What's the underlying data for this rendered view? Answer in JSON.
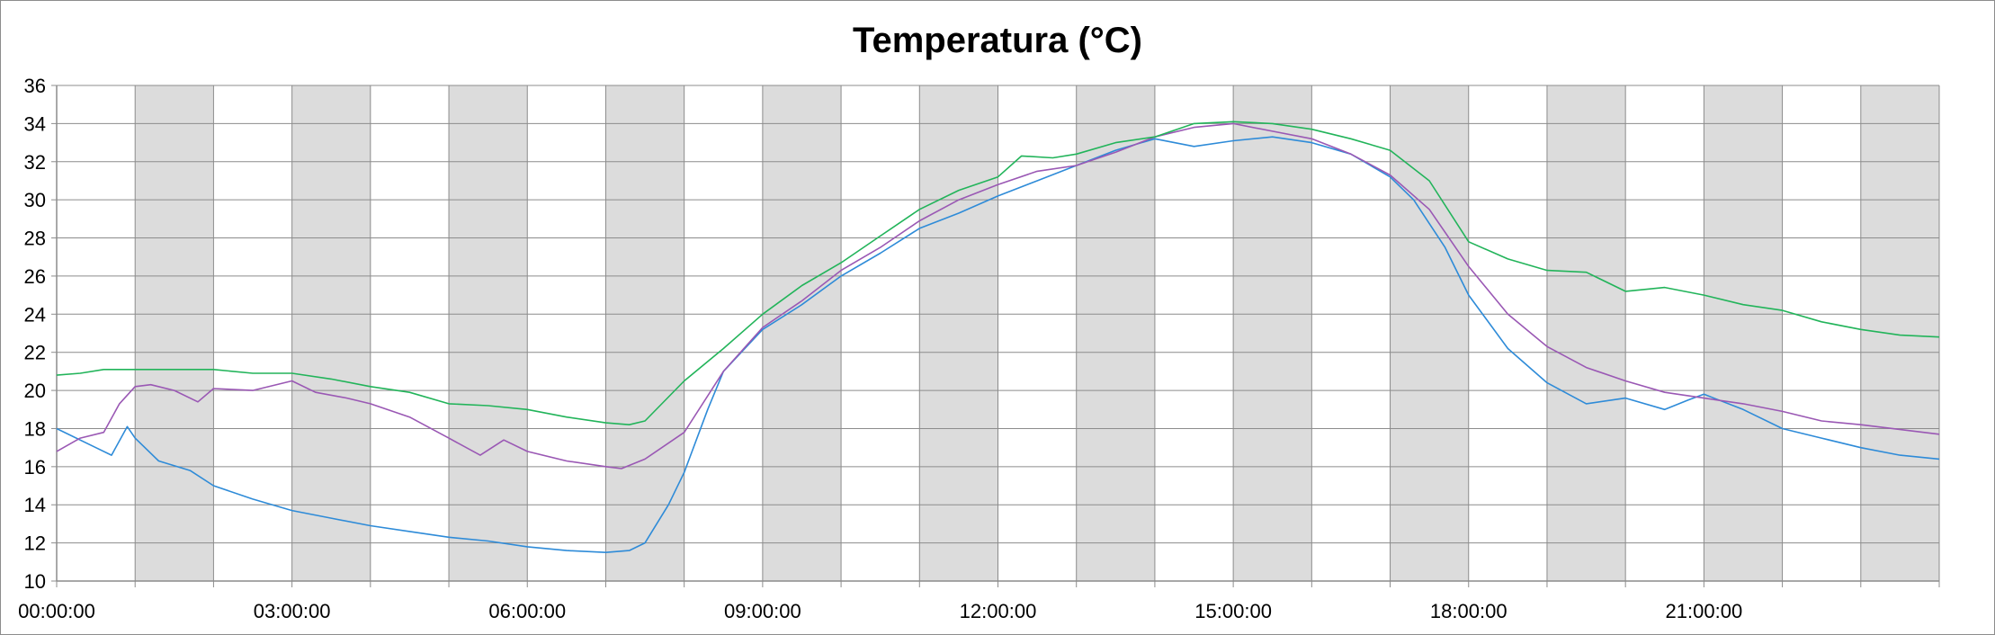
{
  "chart_data": {
    "type": "line",
    "title": "Temperatura (°C)",
    "xlabel": "",
    "ylabel": "",
    "x_unit": "hours",
    "xlim": [
      0,
      24
    ],
    "ylim": [
      10,
      36
    ],
    "x_tick_labels": [
      "00:00:00",
      "03:00:00",
      "06:00:00",
      "09:00:00",
      "12:00:00",
      "15:00:00",
      "18:00:00",
      "21:00:00"
    ],
    "x_tick_positions_hours": [
      0,
      3,
      6,
      9,
      12,
      15,
      18,
      21
    ],
    "y_ticks": [
      10,
      12,
      14,
      16,
      18,
      20,
      22,
      24,
      26,
      28,
      30,
      32,
      34,
      36
    ],
    "grid": true,
    "legend": "none",
    "shaded_bands_hours": [
      [
        1,
        2
      ],
      [
        3,
        4
      ],
      [
        5,
        6
      ],
      [
        7,
        8
      ],
      [
        9,
        10
      ],
      [
        11,
        12
      ],
      [
        13,
        14
      ],
      [
        15,
        16
      ],
      [
        17,
        18
      ],
      [
        19,
        20
      ],
      [
        21,
        22
      ],
      [
        23,
        24
      ]
    ],
    "colors": {
      "band": "#dcdcdc",
      "grid": "#8c8c8c",
      "axis": "#8c8c8c"
    },
    "series": [
      {
        "color": "#2e8bd8",
        "x": [
          0,
          0.5,
          0.7,
          0.9,
          1.0,
          1.3,
          1.7,
          2.0,
          2.5,
          3.0,
          3.5,
          4.0,
          4.5,
          5.0,
          5.5,
          6.0,
          6.5,
          7.0,
          7.3,
          7.5,
          7.8,
          8.0,
          8.3,
          8.5,
          9.0,
          9.5,
          10.0,
          10.5,
          11.0,
          11.5,
          12.0,
          12.5,
          13.0,
          13.5,
          14.0,
          14.5,
          15.0,
          15.5,
          16.0,
          16.5,
          17.0,
          17.3,
          17.7,
          18.0,
          18.5,
          19.0,
          19.5,
          20.0,
          20.5,
          20.8,
          21.0,
          21.5,
          22.0,
          22.5,
          23.0,
          23.5,
          24.0
        ],
        "y": [
          18.0,
          17.0,
          16.6,
          18.1,
          17.5,
          16.3,
          15.8,
          15.0,
          14.3,
          13.7,
          13.3,
          12.9,
          12.6,
          12.3,
          12.1,
          11.8,
          11.6,
          11.5,
          11.6,
          12.0,
          14.0,
          15.7,
          19.0,
          21.0,
          23.2,
          24.5,
          26.0,
          27.2,
          28.5,
          29.3,
          30.2,
          31.0,
          31.8,
          32.6,
          33.2,
          32.8,
          33.1,
          33.3,
          33.0,
          32.4,
          31.2,
          30.0,
          27.5,
          25.0,
          22.2,
          20.4,
          19.3,
          19.6,
          19.0,
          19.5,
          19.8,
          19.0,
          18.0,
          17.5,
          17.0,
          16.6,
          16.4
        ]
      },
      {
        "color": "#9a58b4",
        "x": [
          0,
          0.3,
          0.6,
          0.8,
          1.0,
          1.2,
          1.5,
          1.8,
          2.0,
          2.5,
          3.0,
          3.3,
          3.7,
          4.0,
          4.5,
          5.0,
          5.4,
          5.7,
          6.0,
          6.5,
          7.0,
          7.2,
          7.5,
          8.0,
          8.5,
          9.0,
          9.5,
          10.0,
          10.5,
          11.0,
          11.5,
          12.0,
          12.5,
          13.0,
          13.5,
          14.0,
          14.5,
          15.0,
          15.5,
          16.0,
          16.5,
          17.0,
          17.5,
          18.0,
          18.5,
          19.0,
          19.5,
          20.0,
          20.5,
          21.0,
          21.5,
          22.0,
          22.5,
          23.0,
          24.0
        ],
        "y": [
          16.8,
          17.5,
          17.8,
          19.3,
          20.2,
          20.3,
          20.0,
          19.4,
          20.1,
          20.0,
          20.5,
          19.9,
          19.6,
          19.3,
          18.6,
          17.5,
          16.6,
          17.4,
          16.8,
          16.3,
          16.0,
          15.9,
          16.4,
          17.8,
          21.0,
          23.3,
          24.7,
          26.3,
          27.5,
          28.9,
          30.0,
          30.8,
          31.5,
          31.8,
          32.5,
          33.3,
          33.8,
          34.0,
          33.6,
          33.2,
          32.4,
          31.3,
          29.5,
          26.5,
          24.0,
          22.3,
          21.2,
          20.5,
          19.9,
          19.6,
          19.3,
          18.9,
          18.4,
          18.2,
          17.7
        ]
      },
      {
        "color": "#22b45a",
        "x": [
          0,
          0.3,
          0.6,
          1.0,
          1.5,
          2.0,
          2.5,
          3.0,
          3.5,
          4.0,
          4.5,
          5.0,
          5.5,
          6.0,
          6.5,
          7.0,
          7.3,
          7.5,
          8.0,
          8.5,
          9.0,
          9.5,
          10.0,
          10.5,
          11.0,
          11.5,
          12.0,
          12.3,
          12.7,
          13.0,
          13.5,
          14.0,
          14.5,
          15.0,
          15.5,
          16.0,
          16.5,
          17.0,
          17.5,
          18.0,
          18.5,
          19.0,
          19.5,
          20.0,
          20.5,
          21.0,
          21.5,
          22.0,
          22.5,
          23.0,
          23.5,
          24.0
        ],
        "y": [
          20.8,
          20.9,
          21.1,
          21.1,
          21.1,
          21.1,
          20.9,
          20.9,
          20.6,
          20.2,
          19.9,
          19.3,
          19.2,
          19.0,
          18.6,
          18.3,
          18.2,
          18.4,
          20.5,
          22.2,
          24.0,
          25.5,
          26.7,
          28.1,
          29.5,
          30.5,
          31.2,
          32.3,
          32.2,
          32.4,
          33.0,
          33.3,
          34.0,
          34.1,
          34.0,
          33.7,
          33.2,
          32.6,
          31.0,
          27.8,
          26.9,
          26.3,
          26.2,
          25.2,
          25.4,
          25.0,
          24.5,
          24.2,
          23.6,
          23.2,
          22.9,
          22.8
        ]
      }
    ]
  }
}
